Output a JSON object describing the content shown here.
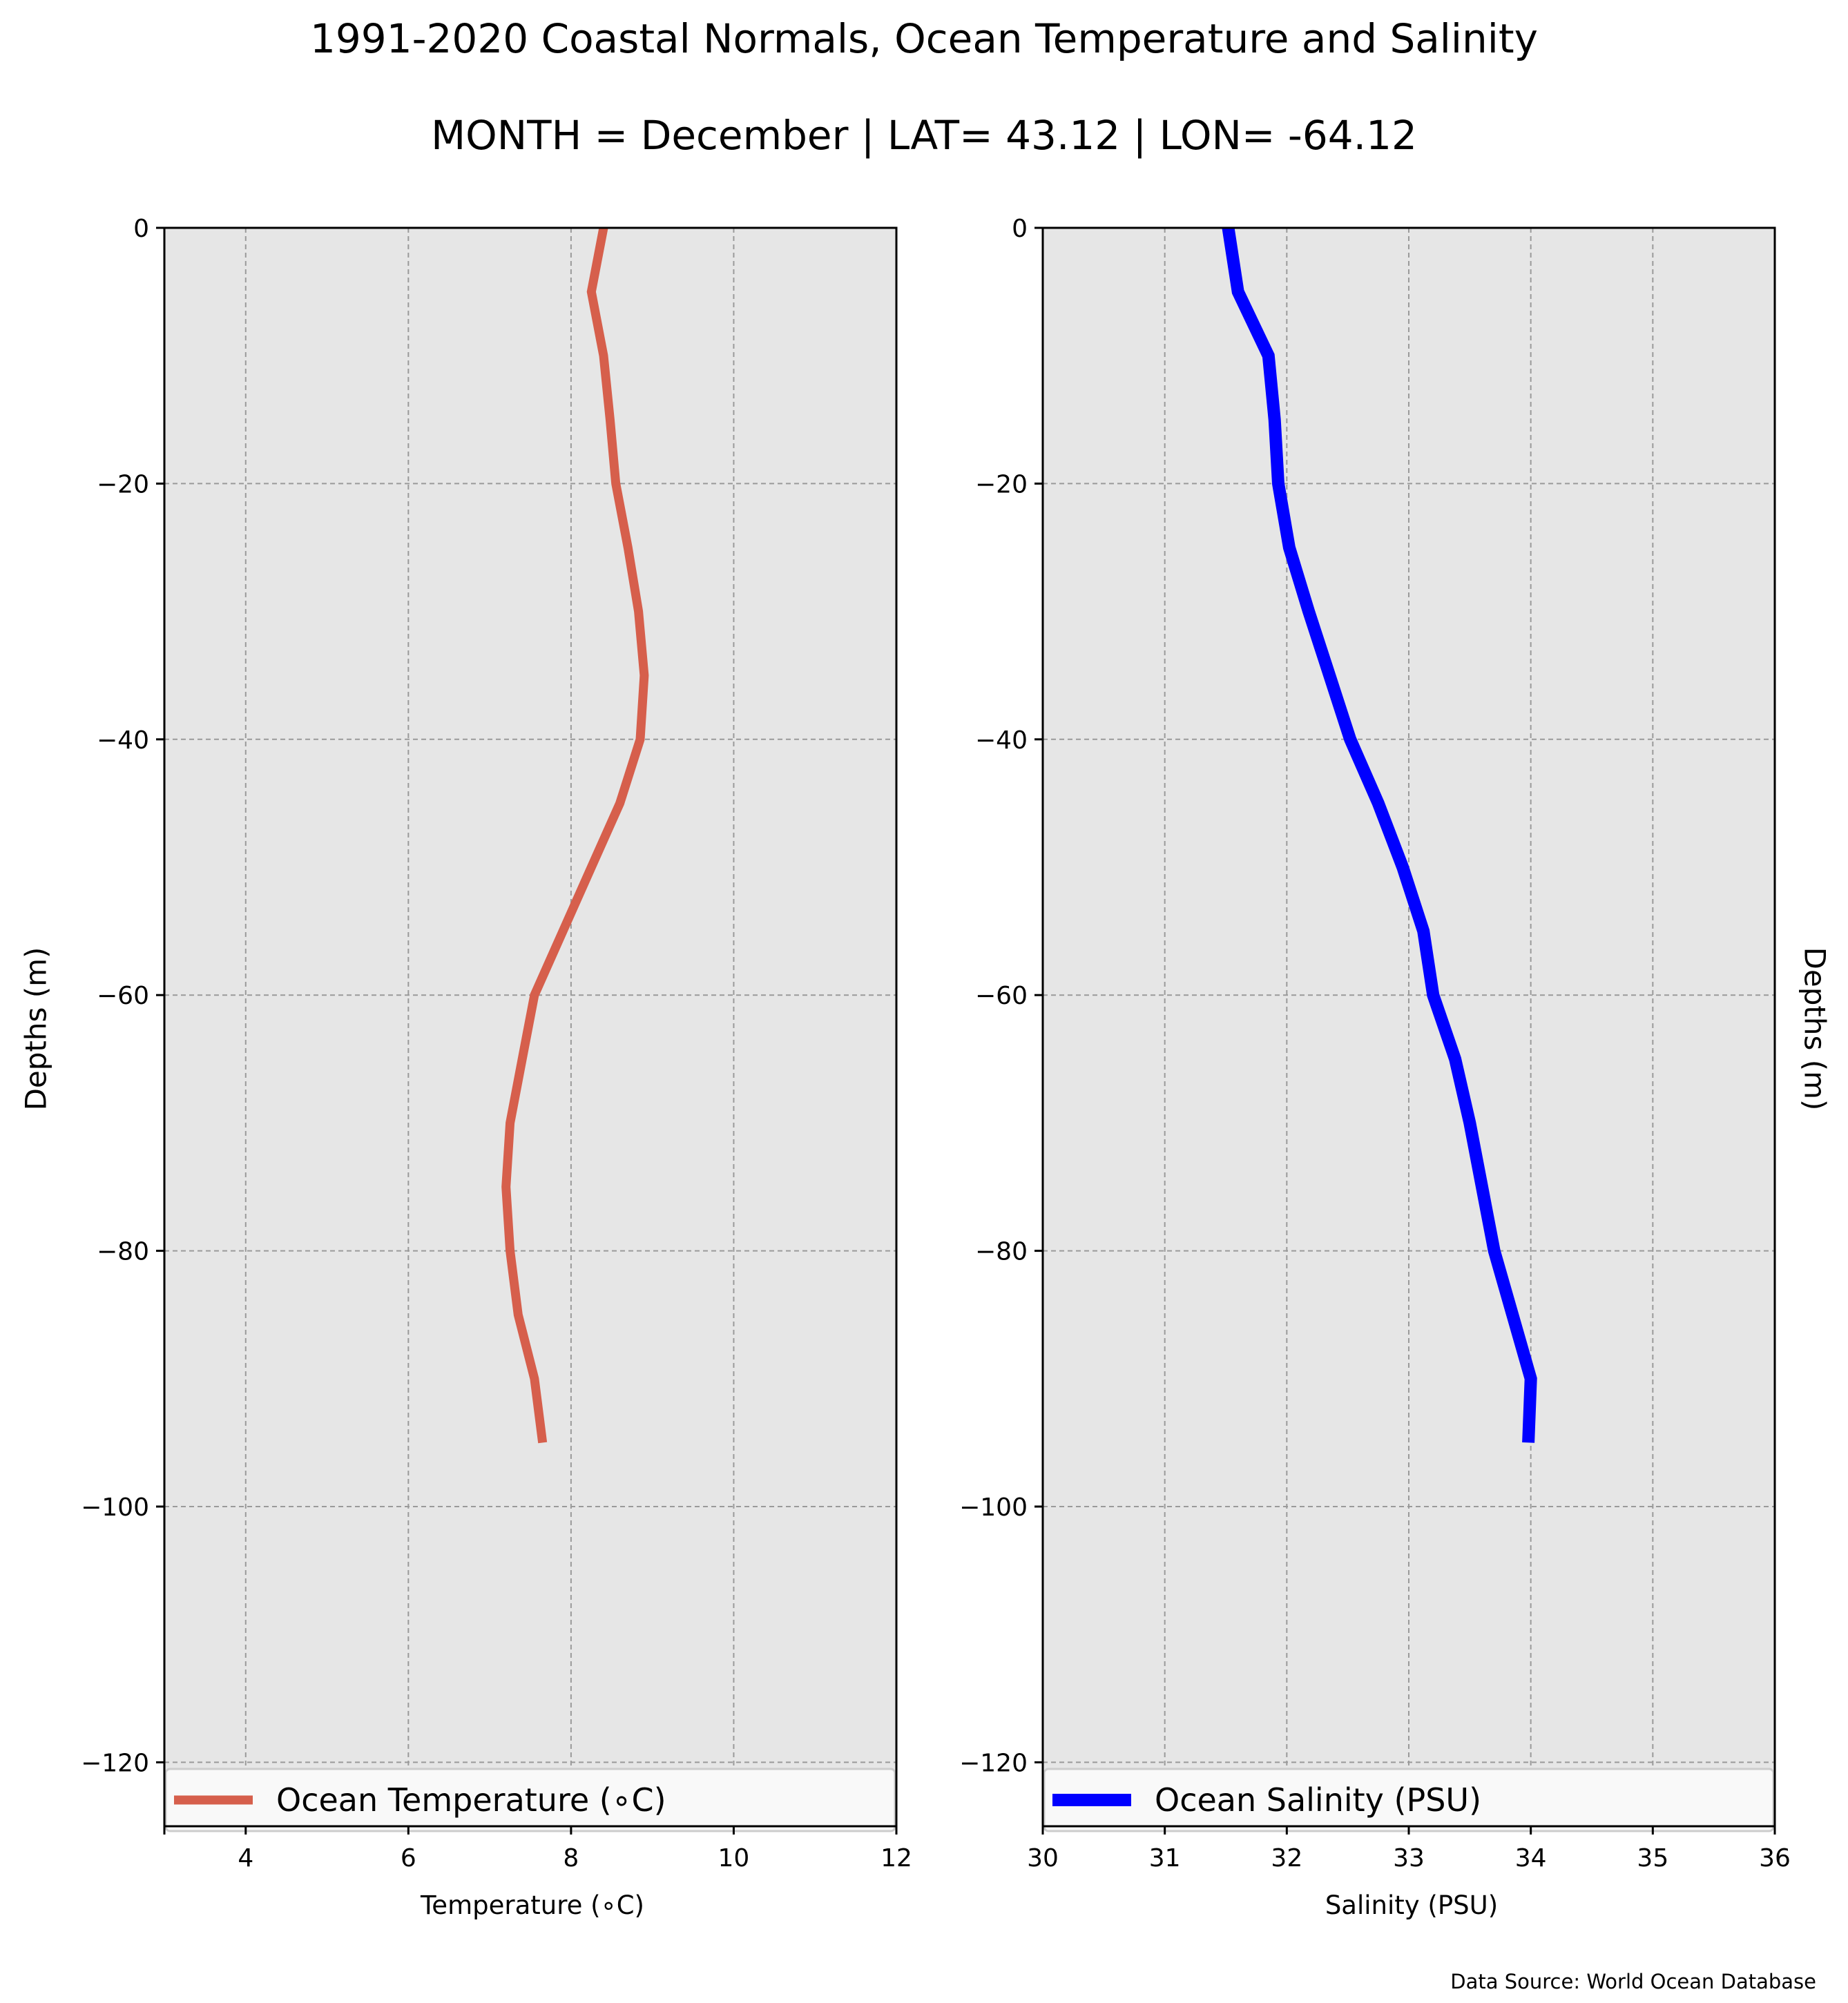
{
  "figure": {
    "title": "1991-2020 Coastal Normals, Ocean Temperature and Salinity",
    "subtitle": "MONTH = December | LAT= 43.12 | LON= -64.12",
    "source": "Data Source: World Ocean Database",
    "background": "#ffffff",
    "plot_background": "#e6e6e6"
  },
  "chart_data": [
    {
      "type": "line",
      "xlabel": "Temperature (∘C)",
      "ylabel": "Depths (m)",
      "xlim": [
        3,
        12
      ],
      "ylim": [
        -125,
        0
      ],
      "xticks": [
        4,
        6,
        8,
        10,
        12
      ],
      "yticks": [
        0,
        -20,
        -40,
        -60,
        -80,
        -100,
        -120
      ],
      "grid": true,
      "legend_position": "bottom",
      "series": [
        {
          "name": "Ocean Temperature (∘C)",
          "color": "#d65f4c",
          "x": [
            8.4,
            8.25,
            8.4,
            8.48,
            8.55,
            8.7,
            8.83,
            8.9,
            8.85,
            8.6,
            8.25,
            7.9,
            7.55,
            7.4,
            7.25,
            7.2,
            7.25,
            7.35,
            7.55,
            7.65
          ],
          "y": [
            0,
            -5,
            -10,
            -15,
            -20,
            -25,
            -30,
            -35,
            -40,
            -45,
            -50,
            -55,
            -60,
            -65,
            -70,
            -75,
            -80,
            -85,
            -90,
            -95
          ]
        }
      ]
    },
    {
      "type": "line",
      "xlabel": "Salinity (PSU)",
      "ylabel": "Depths (m)",
      "xlim": [
        30,
        36
      ],
      "ylim": [
        -125,
        0
      ],
      "xticks": [
        30,
        31,
        32,
        33,
        34,
        35,
        36
      ],
      "yticks": [
        0,
        -20,
        -40,
        -60,
        -80,
        -100,
        -120
      ],
      "grid": true,
      "legend_position": "bottom",
      "series": [
        {
          "name": "Ocean Salinity (PSU)",
          "color": "#0000ff",
          "x": [
            31.52,
            31.6,
            31.85,
            31.9,
            31.93,
            32.02,
            32.18,
            32.35,
            32.52,
            32.75,
            32.95,
            33.12,
            33.2,
            33.38,
            33.5,
            33.6,
            33.7,
            33.85,
            34.0,
            33.98
          ],
          "y": [
            0,
            -5,
            -10,
            -15,
            -20,
            -25,
            -30,
            -35,
            -40,
            -45,
            -50,
            -55,
            -60,
            -65,
            -70,
            -75,
            -80,
            -85,
            -90,
            -95
          ]
        }
      ]
    }
  ]
}
